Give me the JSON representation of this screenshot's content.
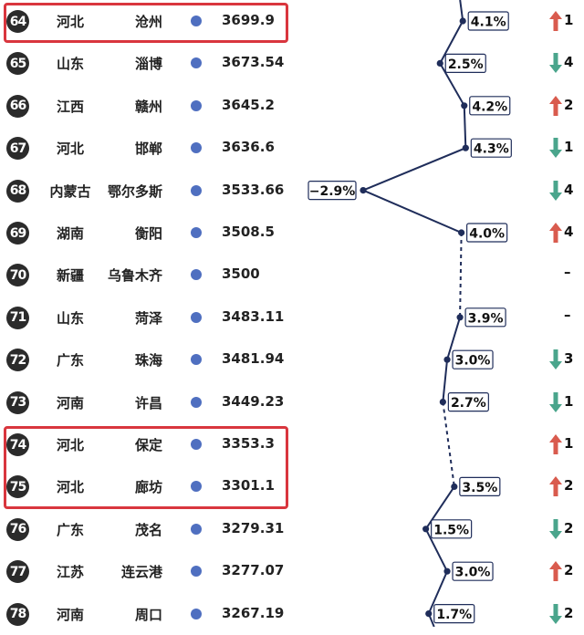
{
  "colors": {
    "line": "#1f2d5a",
    "dot_blue": "#4f6fc0",
    "up": "#d95b4e",
    "down": "#4aa58c",
    "highlight": "#d9363e"
  },
  "chart_data": {
    "type": "table",
    "rows": [
      {
        "rank": "64",
        "province": "河北",
        "city": "沧州",
        "gdp": "3699.9",
        "growth": "4.1%",
        "growth_value": 4.1,
        "change": "up",
        "change_value": "1",
        "highlighted": true
      },
      {
        "rank": "65",
        "province": "山东",
        "city": "淄博",
        "gdp": "3673.54",
        "growth": "2.5%",
        "growth_value": 2.5,
        "change": "down",
        "change_value": "4"
      },
      {
        "rank": "66",
        "province": "江西",
        "city": "赣州",
        "gdp": "3645.2",
        "growth": "4.2%",
        "growth_value": 4.2,
        "change": "up",
        "change_value": "2"
      },
      {
        "rank": "67",
        "province": "河北",
        "city": "邯郸",
        "gdp": "3636.6",
        "growth": "4.3%",
        "growth_value": 4.3,
        "change": "down",
        "change_value": "1"
      },
      {
        "rank": "68",
        "province": "内蒙古",
        "city": "鄂尔多斯",
        "gdp": "3533.66",
        "growth": "−2.9%",
        "growth_value": -2.9,
        "change": "down",
        "change_value": "4"
      },
      {
        "rank": "69",
        "province": "湖南",
        "city": "衡阳",
        "gdp": "3508.5",
        "growth": "4.0%",
        "growth_value": 4.0,
        "change": "up",
        "change_value": "4"
      },
      {
        "rank": "70",
        "province": "新疆",
        "city": "乌鲁木齐",
        "gdp": "3500",
        "growth": "",
        "growth_value": null,
        "change": "none",
        "change_value": "–"
      },
      {
        "rank": "71",
        "province": "山东",
        "city": "菏泽",
        "gdp": "3483.11",
        "growth": "3.9%",
        "growth_value": 3.9,
        "change": "none",
        "change_value": "–"
      },
      {
        "rank": "72",
        "province": "广东",
        "city": "珠海",
        "gdp": "3481.94",
        "growth": "3.0%",
        "growth_value": 3.0,
        "change": "down",
        "change_value": "3"
      },
      {
        "rank": "73",
        "province": "河南",
        "city": "许昌",
        "gdp": "3449.23",
        "growth": "2.7%",
        "growth_value": 2.7,
        "change": "down",
        "change_value": "1"
      },
      {
        "rank": "74",
        "province": "河北",
        "city": "保定",
        "gdp": "3353.3",
        "growth": "",
        "growth_value": null,
        "change": "up",
        "change_value": "1",
        "highlighted": true
      },
      {
        "rank": "75",
        "province": "河北",
        "city": "廊坊",
        "gdp": "3301.1",
        "growth": "3.5%",
        "growth_value": 3.5,
        "change": "up",
        "change_value": "2",
        "highlighted": true
      },
      {
        "rank": "76",
        "province": "广东",
        "city": "茂名",
        "gdp": "3279.31",
        "growth": "1.5%",
        "growth_value": 1.5,
        "change": "down",
        "change_value": "2"
      },
      {
        "rank": "77",
        "province": "江苏",
        "city": "连云港",
        "gdp": "3277.07",
        "growth": "3.0%",
        "growth_value": 3.0,
        "change": "up",
        "change_value": "2"
      },
      {
        "rank": "78",
        "province": "河南",
        "city": "周口",
        "gdp": "3267.19",
        "growth": "1.7%",
        "growth_value": 1.7,
        "change": "down",
        "change_value": "2"
      }
    ]
  }
}
